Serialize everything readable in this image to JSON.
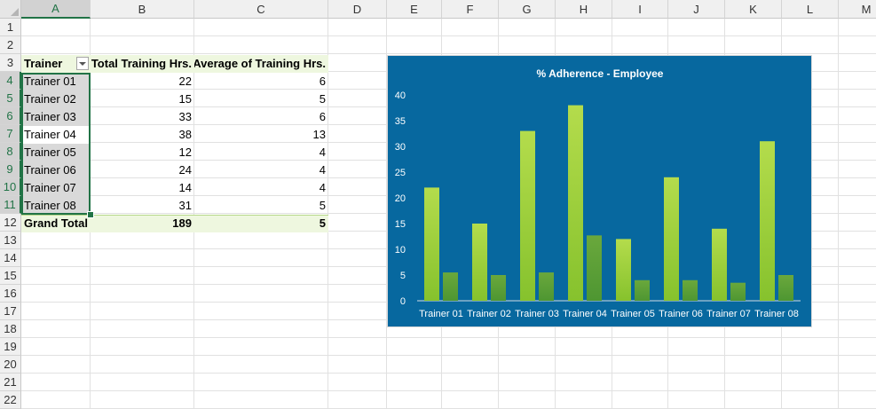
{
  "columns": [
    "A",
    "B",
    "C",
    "D",
    "E",
    "F",
    "G",
    "H",
    "I",
    "J",
    "K",
    "L",
    "M"
  ],
  "rows": [
    "1",
    "2",
    "3",
    "4",
    "5",
    "6",
    "7",
    "8",
    "9",
    "10",
    "11",
    "12",
    "13",
    "14",
    "15",
    "16",
    "17",
    "18",
    "19",
    "20",
    "21",
    "22"
  ],
  "pivot": {
    "headers": [
      "Trainer",
      "Total Training Hrs.",
      "Average of Training Hrs."
    ],
    "body": [
      [
        "Trainer 01",
        "22",
        "6"
      ],
      [
        "Trainer 02",
        "15",
        "5"
      ],
      [
        "Trainer 03",
        "33",
        "6"
      ],
      [
        "Trainer 04",
        "38",
        "13"
      ],
      [
        "Trainer 05",
        "12",
        "4"
      ],
      [
        "Trainer 06",
        "24",
        "4"
      ],
      [
        "Trainer 07",
        "14",
        "4"
      ],
      [
        "Trainer 08",
        "31",
        "5"
      ]
    ],
    "total": [
      "Grand Total",
      "189",
      "5"
    ]
  },
  "colors": {
    "chart_bg": "#07689f",
    "bar_total": "#a6d13f",
    "bar_avg": "#5a9e35",
    "selection": "#217346"
  },
  "chart_data": {
    "type": "bar",
    "title": "% Adherence - Employee",
    "categories": [
      "Trainer 01",
      "Trainer 02",
      "Trainer 03",
      "Trainer 04",
      "Trainer 05",
      "Trainer 06",
      "Trainer 07",
      "Trainer 08"
    ],
    "series": [
      {
        "values": [
          22,
          15,
          33,
          38,
          12,
          24,
          14,
          31
        ]
      },
      {
        "values": [
          5.5,
          5,
          5.5,
          12.7,
          4,
          4,
          3.5,
          5
        ]
      }
    ],
    "ylim": [
      0,
      40
    ],
    "yticks": [
      "0",
      "5",
      "10",
      "15",
      "20",
      "25",
      "30",
      "35",
      "40"
    ],
    "grid": false,
    "legend": "none"
  }
}
